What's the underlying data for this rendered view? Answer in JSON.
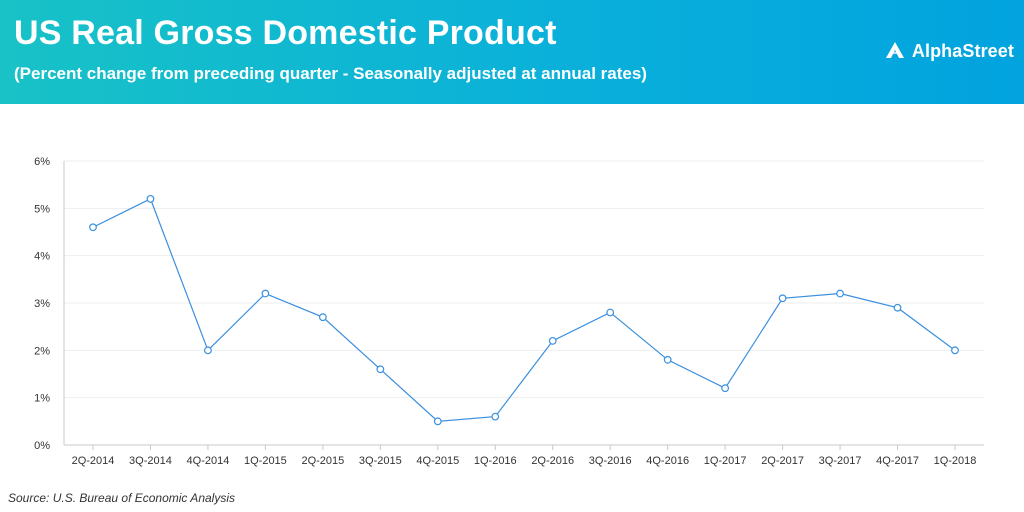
{
  "header": {
    "title": "US Real Gross Domestic Product",
    "subtitle": "(Percent change from preceding quarter - Seasonally adjusted at annual rates)",
    "brand": "AlphaStreet",
    "brand_icon": "alphastreet-logo-icon",
    "gradient_colors": [
      "#18c2c6",
      "#02a3df"
    ]
  },
  "source": "Source: U.S. Bureau of Economic Analysis",
  "chart_data": {
    "type": "line",
    "title": "US Real Gross Domestic Product",
    "subtitle": "(Percent change from preceding quarter - Seasonally adjusted at annual rates)",
    "xlabel": "",
    "ylabel": "",
    "categories": [
      "2Q-2014",
      "3Q-2014",
      "4Q-2014",
      "1Q-2015",
      "2Q-2015",
      "3Q-2015",
      "4Q-2015",
      "1Q-2016",
      "2Q-2016",
      "3Q-2016",
      "4Q-2016",
      "1Q-2017",
      "2Q-2017",
      "3Q-2017",
      "4Q-2017",
      "1Q-2018"
    ],
    "series": [
      {
        "values": [
          4.6,
          5.2,
          2.0,
          3.2,
          2.7,
          1.6,
          0.5,
          0.6,
          2.2,
          2.8,
          1.8,
          1.2,
          3.1,
          3.2,
          2.9,
          2.0
        ],
        "color": "#3a8fde"
      }
    ],
    "ylim": [
      0,
      6
    ],
    "yticks": [
      "0%",
      "1%",
      "2%",
      "3%",
      "4%",
      "5%",
      "6%"
    ],
    "grid": true,
    "legend": "none"
  }
}
